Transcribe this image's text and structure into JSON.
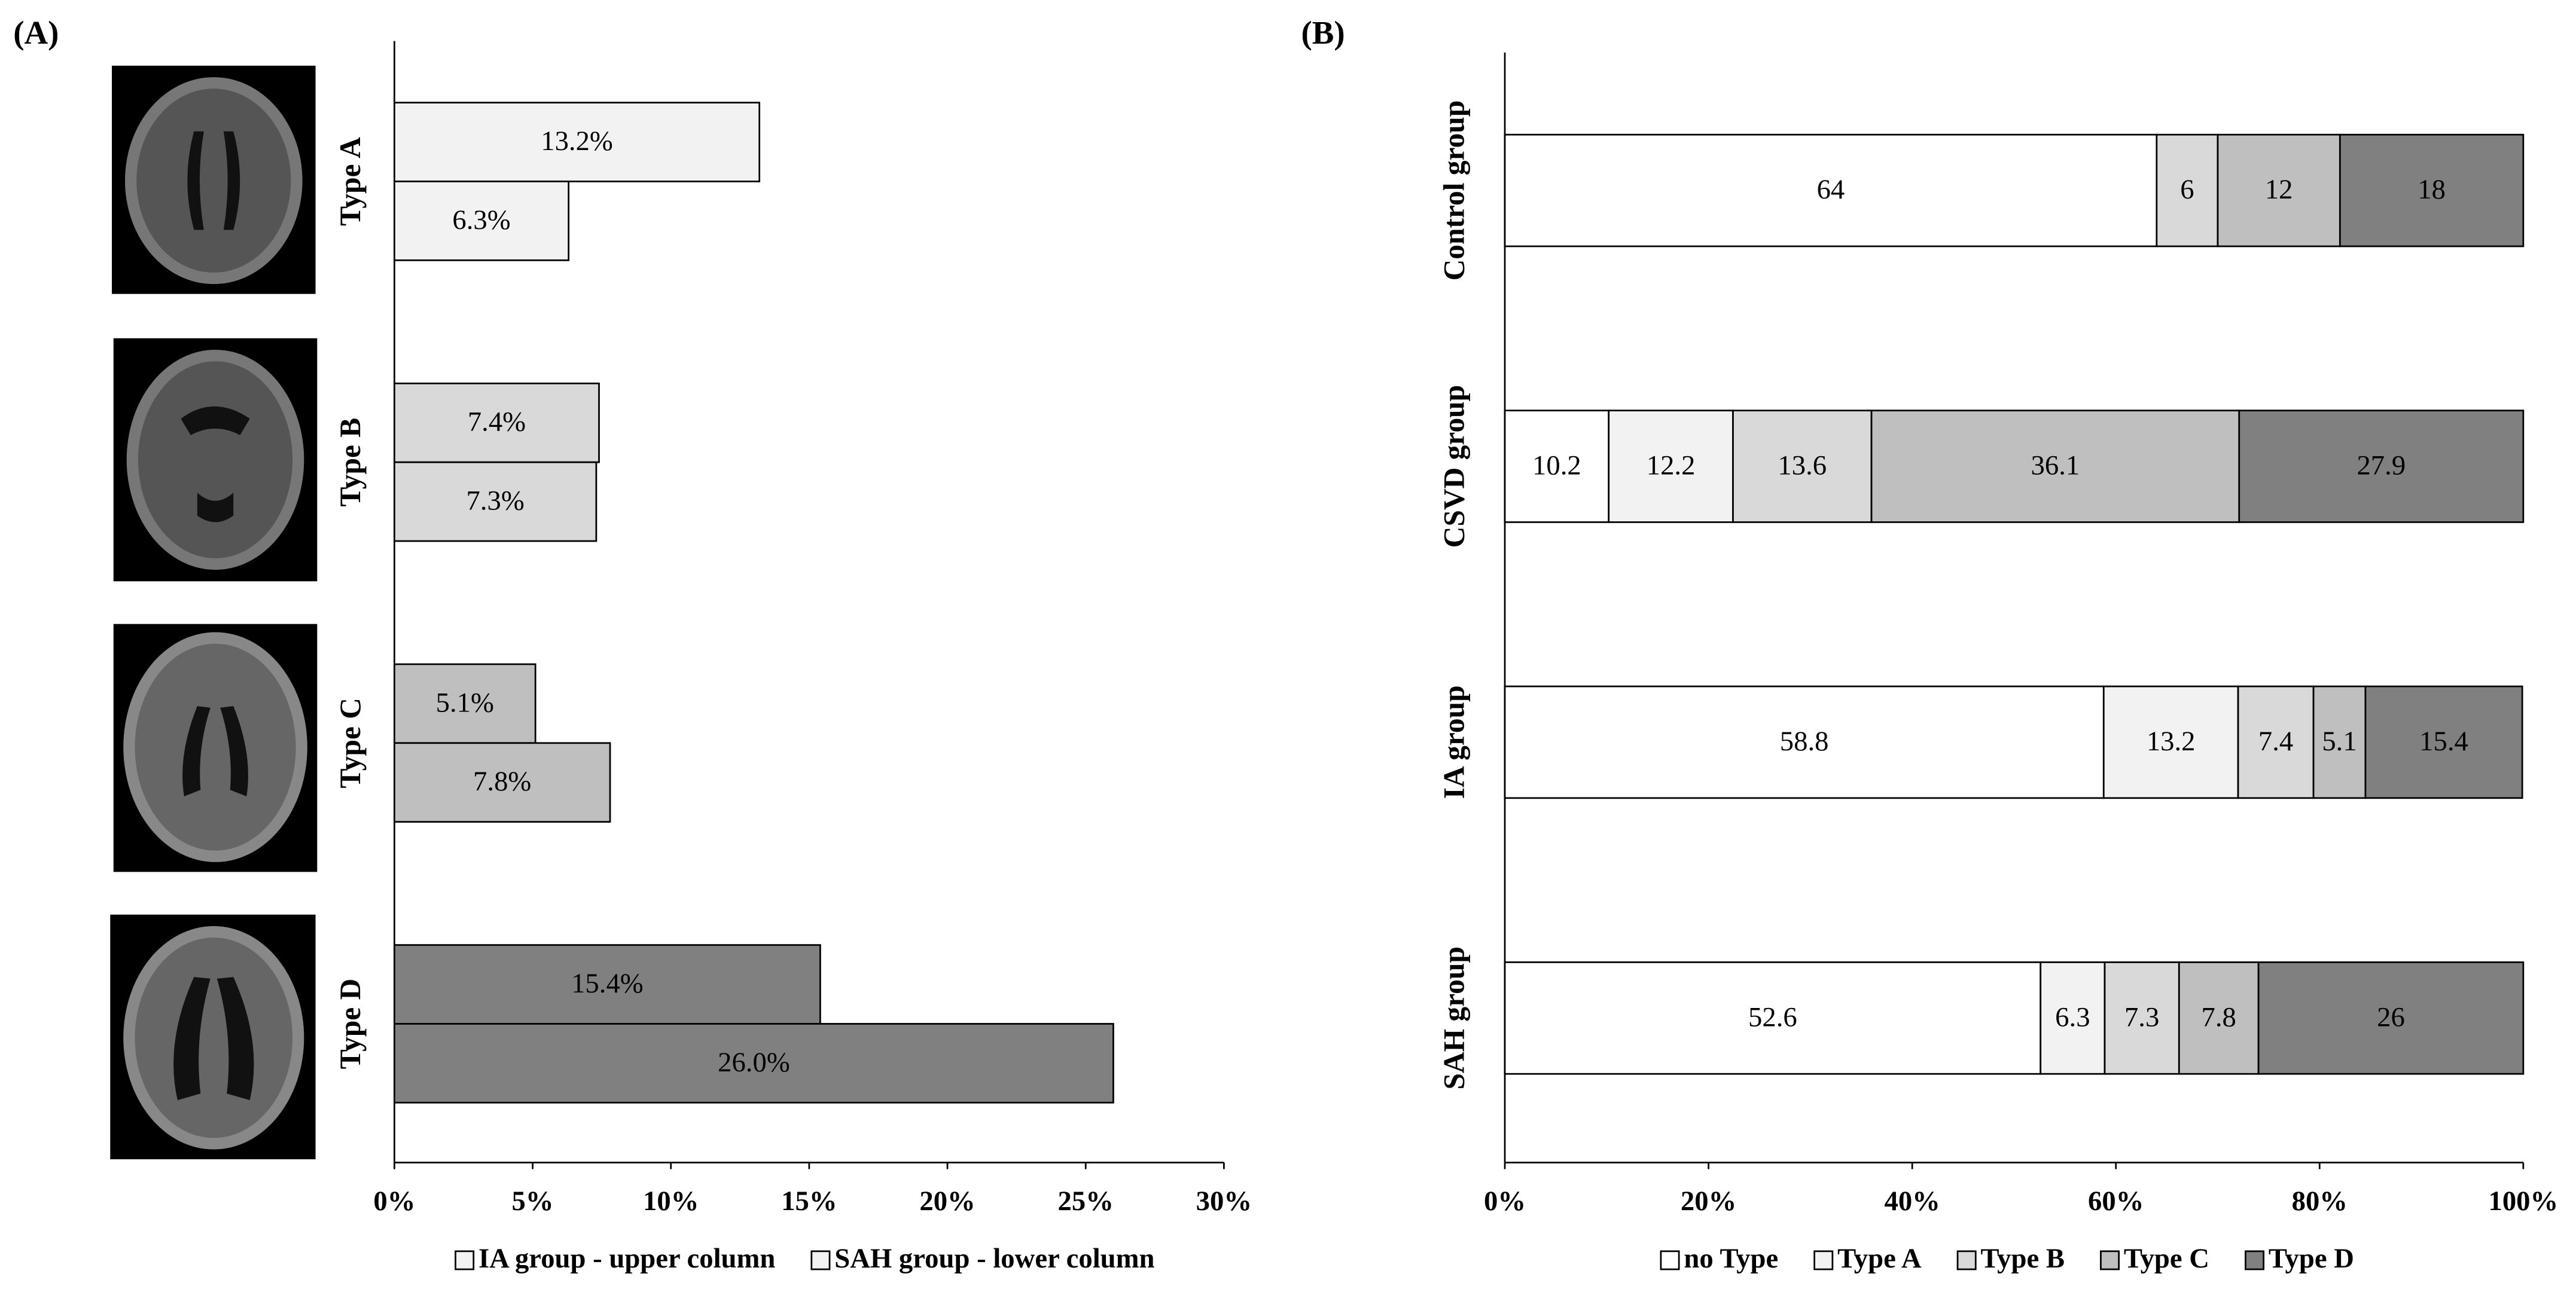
{
  "chart_data": [
    {
      "type": "bar",
      "panel_label": "(A)",
      "categories": [
        "Type A",
        "Type B",
        "Type C",
        "Type D"
      ],
      "category_colors": [
        "#f2f2f2",
        "#d9d9d9",
        "#bfbfbf",
        "#808080"
      ],
      "series": [
        {
          "name": "IA group - upper column",
          "color": "#f2f2f2",
          "values": [
            13.2,
            7.4,
            5.1,
            15.4
          ],
          "value_labels": [
            "13.2%",
            "7.4%",
            "5.1%",
            "15.4%"
          ]
        },
        {
          "name": "SAH group - lower column",
          "color": "#f2f2f2",
          "values": [
            6.3,
            7.3,
            7.8,
            26.0
          ],
          "value_labels": [
            "6.3%",
            "7.3%",
            "7.8%",
            "26.0%"
          ]
        }
      ],
      "xlim": [
        0,
        30
      ],
      "xticks": [
        {
          "value": 0,
          "label": "0%"
        },
        {
          "value": 5,
          "label": "5%"
        },
        {
          "value": 10,
          "label": "10%"
        },
        {
          "value": 15,
          "label": "15%"
        },
        {
          "value": 20,
          "label": "20%"
        },
        {
          "value": 25,
          "label": "25%"
        },
        {
          "value": 30,
          "label": "30%"
        }
      ]
    },
    {
      "type": "stacked_bar",
      "panel_label": "(B)",
      "categories": [
        "Control group",
        "CSVD group",
        "IA group",
        "SAH group"
      ],
      "series": [
        {
          "name": "no Type",
          "color": "#ffffff",
          "values": [
            64,
            10.2,
            58.8,
            52.6
          ]
        },
        {
          "name": "Type A",
          "color": "#f2f2f2",
          "values": [
            null,
            12.2,
            13.2,
            6.3
          ]
        },
        {
          "name": "Type B",
          "color": "#d9d9d9",
          "values": [
            6,
            13.6,
            7.4,
            7.3
          ]
        },
        {
          "name": "Type C",
          "color": "#bfbfbf",
          "values": [
            12,
            36.1,
            5.1,
            7.8
          ]
        },
        {
          "name": "Type D",
          "color": "#808080",
          "values": [
            18,
            27.9,
            15.4,
            26
          ]
        }
      ],
      "xlim": [
        0,
        100
      ],
      "xticks": [
        {
          "value": 0,
          "label": "0%"
        },
        {
          "value": 20,
          "label": "20%"
        },
        {
          "value": 40,
          "label": "40%"
        },
        {
          "value": 60,
          "label": "60%"
        },
        {
          "value": 80,
          "label": "80%"
        },
        {
          "value": 100,
          "label": "100%"
        }
      ]
    }
  ]
}
